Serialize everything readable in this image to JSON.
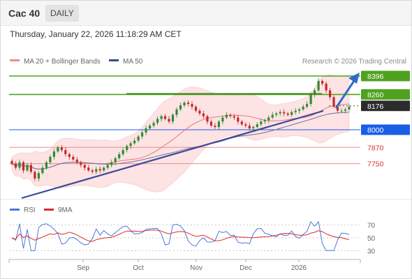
{
  "header": {
    "symbol": "Cac 40",
    "timeframe": "DAILY",
    "datetime": "Thursday, January 22, 2026 11:18:29 AM CET"
  },
  "legend": {
    "ma20_label": "MA 20 + Bollinger Bands",
    "ma50_label": "MA 50",
    "credit": "Research © 2026 Trading Central",
    "rsi_label": "RSI",
    "rsi_ma_label": "9MA"
  },
  "colors": {
    "support_blue": "#1a5ee8",
    "resistance_green": "#4fa21e",
    "red_level": "#d93030",
    "pivot_dark": "#2b2b2b",
    "candle_up": "#2e8b35",
    "candle_down": "#c62828",
    "ma20": "#e87a7a",
    "ma50": "#6a6f9e",
    "bollinger_fill": "#fde3e3",
    "trendline": "#3a4a9a",
    "arrow": "#2e6cc7",
    "rsi_line": "#4a78d8",
    "rsi_ma": "#d92c2c"
  },
  "levels": {
    "r2": "8396",
    "r1": "8260",
    "pivot": "8176",
    "s1": "8000",
    "s2": "7870",
    "s3": "7750"
  },
  "rsi_axis": [
    "70",
    "50",
    "30"
  ],
  "month_labels": [
    "Sep",
    "Oct",
    "Nov",
    "Dec",
    "2026"
  ],
  "chart_data": {
    "type": "candlestick",
    "timeframe": "daily",
    "y_range_approx": [
      7620,
      8420
    ],
    "levels": [
      {
        "value": 8396,
        "kind": "resistance"
      },
      {
        "value": 8260,
        "kind": "resistance"
      },
      {
        "value": 8176,
        "kind": "pivot"
      },
      {
        "value": 8000,
        "kind": "support"
      },
      {
        "value": 7870,
        "kind": "support"
      },
      {
        "value": 7750,
        "kind": "support"
      }
    ],
    "close_series": [
      7750,
      7720,
      7760,
      7700,
      7740,
      7690,
      7640,
      7680,
      7720,
      7760,
      7800,
      7840,
      7870,
      7850,
      7820,
      7800,
      7780,
      7760,
      7740,
      7720,
      7700,
      7690,
      7710,
      7700,
      7720,
      7740,
      7760,
      7790,
      7820,
      7850,
      7880,
      7900,
      7920,
      7950,
      7980,
      8010,
      8030,
      8050,
      8080,
      8100,
      8080,
      8060,
      8110,
      8150,
      8180,
      8200,
      8190,
      8170,
      8140,
      8120,
      8100,
      8060,
      8030,
      8020,
      8060,
      8090,
      8110,
      8100,
      8090,
      8060,
      8040,
      8030,
      8010,
      8020,
      8040,
      8060,
      8070,
      8090,
      8110,
      8120,
      8130,
      8120,
      8110,
      8130,
      8140,
      8150,
      8170,
      8190,
      8260,
      8290,
      8360,
      8340,
      8290,
      8240,
      8170,
      8140,
      8140,
      8150,
      8170
    ],
    "ma20_band": "area around price",
    "rsi_axis_values": [
      30,
      50,
      70
    ],
    "x_tick_labels": [
      "Sep",
      "Oct",
      "Nov",
      "Dec",
      "2026"
    ]
  }
}
